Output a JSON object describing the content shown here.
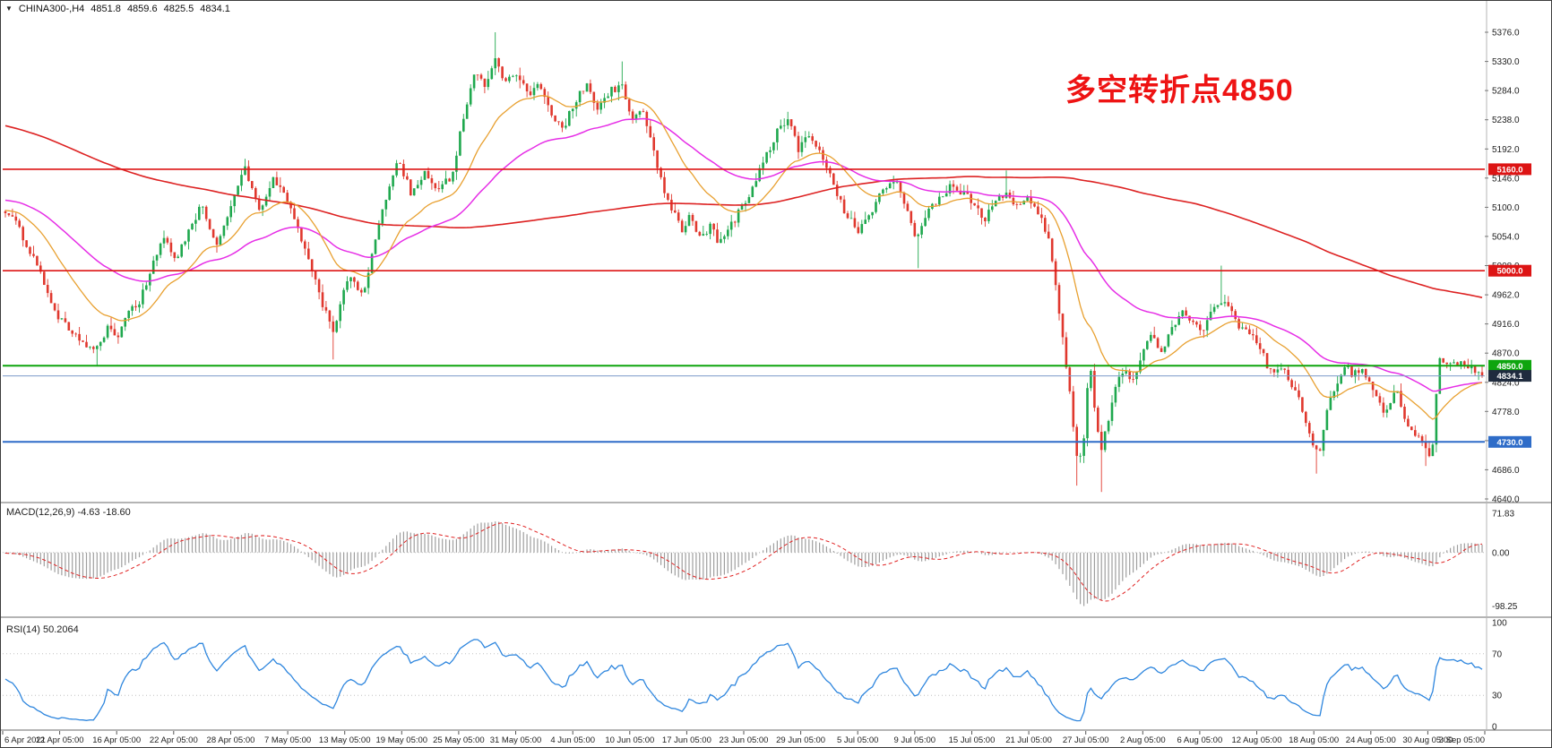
{
  "colors": {
    "up": "#1fa84e",
    "down": "#e0382e",
    "ma_slow": "#dd2222",
    "ma_mid": "#e62ee6",
    "ma_fast": "#e8a030",
    "macd_hist": "#9e9e9e",
    "macd_signal": "#e02222",
    "rsi": "#2e86de",
    "axis_text": "#222222",
    "annotation": "#ee1313",
    "separator": "#6a6a6a",
    "grid_dotted": "#c0c0c0",
    "label_text": "#ffffff"
  },
  "header": {
    "expander": "▼",
    "symbol_period": "CHINA300-,H4",
    "open": "4851.8",
    "high": "4859.6",
    "low": "4825.5",
    "close": "4834.1"
  },
  "annotation": {
    "text": "多空转折点4850"
  },
  "price_axis": {
    "ticks": [
      "5376.0",
      "5330.0",
      "5284.0",
      "5238.0",
      "5192.0",
      "5146.0",
      "5100.0",
      "5054.0",
      "5008.0",
      "4962.0",
      "4916.0",
      "4870.0",
      "4824.0",
      "4778.0",
      "4732.0",
      "4686.0",
      "4640.0"
    ]
  },
  "time_axis": {
    "labels": [
      "6 Apr 2021",
      "12 Apr 05:00",
      "16 Apr 05:00",
      "22 Apr 05:00",
      "28 Apr 05:00",
      "7 May 05:00",
      "13 May 05:00",
      "19 May 05:00",
      "25 May 05:00",
      "31 May 05:00",
      "4 Jun 05:00",
      "10 Jun 05:00",
      "17 Jun 05:00",
      "23 Jun 05:00",
      "29 Jun 05:00",
      "5 Jul 05:00",
      "9 Jul 05:00",
      "15 Jul 05:00",
      "21 Jul 05:00",
      "27 Jul 05:00",
      "2 Aug 05:00",
      "6 Aug 05:00",
      "12 Aug 05:00",
      "18 Aug 05:00",
      "24 Aug 05:00",
      "30 Aug 05:00",
      "3 Sep 05:00"
    ]
  },
  "macd_panel": {
    "label": "MACD(12,26,9) -4.63 -18.60",
    "ticks": [
      {
        "text": "71.83",
        "value": 71.83
      },
      {
        "text": "0.00",
        "value": 0
      },
      {
        "text": "-98.25",
        "value": -98.25
      }
    ]
  },
  "rsi_panel": {
    "label": "RSI(14) 50.2064",
    "ticks": [
      {
        "text": "100",
        "value": 100
      },
      {
        "text": "70",
        "value": 70
      },
      {
        "text": "30",
        "value": 30
      },
      {
        "text": "0",
        "value": 0
      }
    ],
    "levels": [
      70,
      30
    ]
  },
  "hlines": [
    {
      "label": "5160.0",
      "value": 5160,
      "color": "#dd1414",
      "width": 1.6
    },
    {
      "label": "5000.0",
      "value": 5000,
      "color": "#dd1414",
      "width": 1.6
    },
    {
      "label": "4850.0",
      "value": 4850,
      "color": "#0ea50e",
      "width": 2
    },
    {
      "label": "4730.0",
      "value": 4730,
      "color": "#2e6cc8",
      "width": 2
    }
  ],
  "bid": {
    "label": "4834.1",
    "value": 4834.1,
    "box_color": "#1f2b3e",
    "line_color": "#7c9ac9"
  },
  "chart_data": {
    "type": "candlestick",
    "symbol": "CHINA300-",
    "timeframe": "H4",
    "x_range": [
      "6 Apr 2021",
      "3 Sep 2021"
    ],
    "y_range": [
      4640,
      5376
    ],
    "current_ohlc": {
      "open": 4851.8,
      "high": 4859.6,
      "low": 4825.5,
      "close": 4834.1
    },
    "overlays": [
      {
        "name": "slow-ma",
        "color": "#dd2222"
      },
      {
        "name": "mid-ma",
        "color": "#e62ee6"
      },
      {
        "name": "fast-ma",
        "color": "#e8a030"
      }
    ],
    "price_keypoints": [
      [
        -0.5,
        5380
      ],
      [
        -0.46,
        5420
      ],
      [
        -0.42,
        5330
      ],
      [
        -0.38,
        5280
      ],
      [
        -0.34,
        5320
      ],
      [
        -0.3,
        5290
      ],
      [
        -0.26,
        5230
      ],
      [
        -0.22,
        5175
      ],
      [
        -0.19,
        5230
      ],
      [
        -0.16,
        5160
      ],
      [
        -0.12,
        5080
      ],
      [
        -0.09,
        5130
      ],
      [
        -0.06,
        5070
      ],
      [
        -0.03,
        5110
      ],
      [
        -0.01,
        5090
      ],
      [
        0.005,
        5085
      ],
      [
        0.02,
        5015
      ],
      [
        0.036,
        4925
      ],
      [
        0.05,
        4890
      ],
      [
        0.062,
        4878
      ],
      [
        0.07,
        4912
      ],
      [
        0.076,
        4888
      ],
      [
        0.083,
        4932
      ],
      [
        0.09,
        4948
      ],
      [
        0.106,
        5050
      ],
      [
        0.116,
        5018
      ],
      [
        0.133,
        5105
      ],
      [
        0.143,
        5042
      ],
      [
        0.162,
        5165
      ],
      [
        0.172,
        5092
      ],
      [
        0.182,
        5148
      ],
      [
        0.196,
        5082
      ],
      [
        0.206,
        5012
      ],
      [
        0.215,
        4942
      ],
      [
        0.222,
        4906
      ],
      [
        0.232,
        4988
      ],
      [
        0.242,
        4962
      ],
      [
        0.255,
        5088
      ],
      [
        0.265,
        5175
      ],
      [
        0.275,
        5122
      ],
      [
        0.285,
        5158
      ],
      [
        0.292,
        5120
      ],
      [
        0.302,
        5150
      ],
      [
        0.312,
        5258
      ],
      [
        0.318,
        5315
      ],
      [
        0.325,
        5295
      ],
      [
        0.332,
        5338
      ],
      [
        0.338,
        5292
      ],
      [
        0.345,
        5318
      ],
      [
        0.355,
        5278
      ],
      [
        0.361,
        5300
      ],
      [
        0.368,
        5252
      ],
      [
        0.378,
        5222
      ],
      [
        0.385,
        5265
      ],
      [
        0.395,
        5295
      ],
      [
        0.401,
        5252
      ],
      [
        0.408,
        5280
      ],
      [
        0.418,
        5295
      ],
      [
        0.424,
        5232
      ],
      [
        0.431,
        5260
      ],
      [
        0.438,
        5198
      ],
      [
        0.444,
        5142
      ],
      [
        0.451,
        5098
      ],
      [
        0.458,
        5062
      ],
      [
        0.464,
        5088
      ],
      [
        0.471,
        5050
      ],
      [
        0.477,
        5072
      ],
      [
        0.484,
        5042
      ],
      [
        0.491,
        5072
      ],
      [
        0.497,
        5092
      ],
      [
        0.507,
        5138
      ],
      [
        0.514,
        5178
      ],
      [
        0.524,
        5225
      ],
      [
        0.53,
        5238
      ],
      [
        0.537,
        5192
      ],
      [
        0.544,
        5210
      ],
      [
        0.554,
        5178
      ],
      [
        0.56,
        5140
      ],
      [
        0.567,
        5100
      ],
      [
        0.577,
        5062
      ],
      [
        0.587,
        5092
      ],
      [
        0.593,
        5126
      ],
      [
        0.603,
        5146
      ],
      [
        0.61,
        5100
      ],
      [
        0.617,
        5048
      ],
      [
        0.623,
        5086
      ],
      [
        0.63,
        5106
      ],
      [
        0.64,
        5136
      ],
      [
        0.65,
        5120
      ],
      [
        0.657,
        5098
      ],
      [
        0.663,
        5082
      ],
      [
        0.67,
        5102
      ],
      [
        0.677,
        5126
      ],
      [
        0.686,
        5098
      ],
      [
        0.693,
        5116
      ],
      [
        0.7,
        5088
      ],
      [
        0.706,
        5058
      ],
      [
        0.713,
        4945
      ],
      [
        0.72,
        4820
      ],
      [
        0.726,
        4695
      ],
      [
        0.73,
        4732
      ],
      [
        0.734,
        4860
      ],
      [
        0.738,
        4778
      ],
      [
        0.742,
        4718
      ],
      [
        0.747,
        4762
      ],
      [
        0.752,
        4818
      ],
      [
        0.757,
        4846
      ],
      [
        0.763,
        4822
      ],
      [
        0.769,
        4866
      ],
      [
        0.776,
        4896
      ],
      [
        0.783,
        4872
      ],
      [
        0.79,
        4906
      ],
      [
        0.796,
        4942
      ],
      [
        0.803,
        4925
      ],
      [
        0.81,
        4902
      ],
      [
        0.817,
        4936
      ],
      [
        0.824,
        4955
      ],
      [
        0.829,
        4940
      ],
      [
        0.835,
        4908
      ],
      [
        0.846,
        4896
      ],
      [
        0.852,
        4866
      ],
      [
        0.858,
        4832
      ],
      [
        0.864,
        4850
      ],
      [
        0.87,
        4822
      ],
      [
        0.877,
        4795
      ],
      [
        0.883,
        4742
      ],
      [
        0.889,
        4706
      ],
      [
        0.895,
        4786
      ],
      [
        0.901,
        4820
      ],
      [
        0.907,
        4850
      ],
      [
        0.912,
        4838
      ],
      [
        0.918,
        4842
      ],
      [
        0.923,
        4834
      ],
      [
        0.929,
        4800
      ],
      [
        0.935,
        4772
      ],
      [
        0.941,
        4816
      ],
      [
        0.947,
        4775
      ],
      [
        0.953,
        4744
      ],
      [
        0.958,
        4734
      ],
      [
        0.962,
        4714
      ],
      [
        0.966,
        4704
      ],
      [
        0.971,
        4866
      ],
      [
        0.978,
        4852
      ],
      [
        0.985,
        4858
      ],
      [
        0.992,
        4846
      ],
      [
        1.0,
        4834
      ]
    ],
    "wick_events": [
      [
        0.062,
        "low",
        4849
      ],
      [
        0.222,
        "low",
        4860
      ],
      [
        0.332,
        "high",
        5376
      ],
      [
        0.418,
        "high",
        5330
      ],
      [
        0.617,
        "low",
        5004
      ],
      [
        0.677,
        "high",
        5158
      ],
      [
        0.726,
        "low",
        4661
      ],
      [
        0.742,
        "low",
        4651
      ],
      [
        0.824,
        "high",
        5008
      ],
      [
        0.889,
        "low",
        4680
      ],
      [
        0.962,
        "low",
        4692
      ]
    ],
    "indicator_panels": [
      {
        "type": "macd",
        "params": [
          12,
          26,
          9
        ],
        "current": [
          -4.63,
          -18.6
        ],
        "axis_range": [
          71.83,
          -98.25
        ]
      },
      {
        "type": "rsi",
        "params": [
          14
        ],
        "current": 50.2064,
        "axis_range": [
          0,
          100
        ]
      }
    ]
  }
}
